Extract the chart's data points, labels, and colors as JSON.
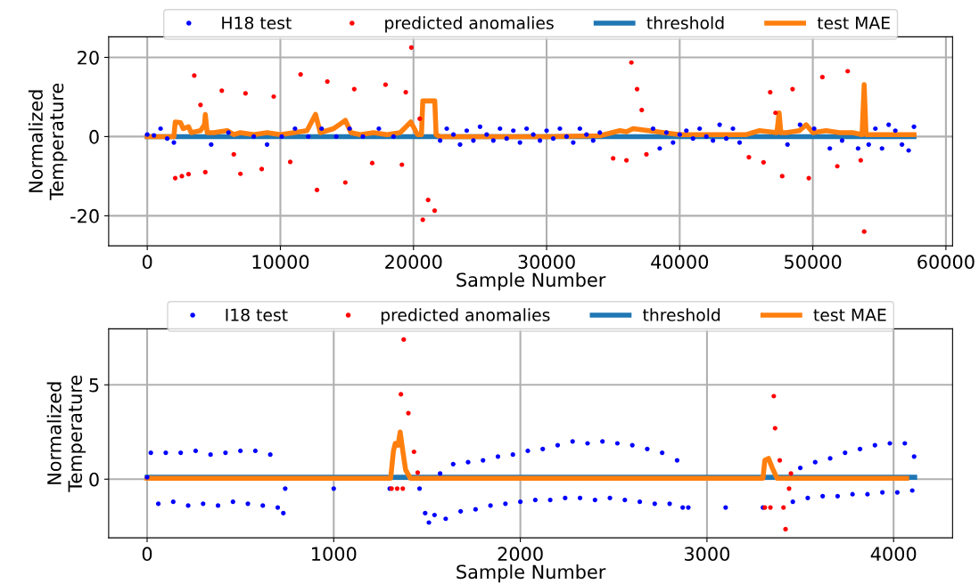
{
  "chart_data": [
    {
      "type": "scatter",
      "xlabel": "Sample Number",
      "ylabel": "Normalized\nTemperature",
      "xlim": [
        -2900,
        60500
      ],
      "ylim": [
        -27.6,
        25.2
      ],
      "xticks": [
        0,
        10000,
        20000,
        30000,
        40000,
        50000,
        60000
      ],
      "yticks": [
        -20,
        0,
        20
      ],
      "grid": true,
      "legend": "top",
      "series": [
        {
          "name": "H18 test",
          "marker": "circle",
          "color": "#0000ff",
          "x": [
            0,
            500,
            1000,
            1500,
            2000,
            4800,
            6100,
            8000,
            9000,
            10100,
            11100,
            12100,
            13100,
            14200,
            15200,
            16200,
            17400,
            18500,
            22000,
            22500,
            23000,
            23500,
            24000,
            24500,
            25000,
            25500,
            26000,
            26500,
            27000,
            27500,
            28000,
            28500,
            29000,
            29500,
            30000,
            30500,
            31000,
            31500,
            32000,
            32500,
            33000,
            33500,
            34000,
            38000,
            38500,
            39000,
            39500,
            40000,
            40500,
            41000,
            41500,
            42000,
            42500,
            43000,
            43500,
            44000,
            44500,
            48100,
            49040,
            50100,
            51280,
            52200,
            53400,
            54200,
            54700,
            55200,
            55700,
            56200,
            56700,
            57200,
            57600
          ],
          "values": [
            0.5,
            0.3,
            2,
            -0.5,
            -1.5,
            -2,
            1,
            0,
            -2,
            0,
            2,
            0,
            2,
            0,
            2,
            0,
            2,
            0,
            -1,
            2,
            0.5,
            -2,
            1.5,
            -1,
            2.5,
            0.5,
            -1,
            2,
            -0.5,
            1.5,
            -1.5,
            2,
            0.5,
            -1,
            1.5,
            -0.5,
            2,
            0,
            -1.5,
            2,
            0.5,
            -1,
            1,
            2,
            -3,
            1,
            -1.5,
            0.5,
            1.5,
            -0.5,
            2,
            0,
            -1,
            3,
            -0.5,
            2,
            -1.5,
            -2,
            3,
            2,
            -3,
            -1,
            -3,
            -2,
            2,
            -3,
            3,
            1.5,
            -2,
            -3.5,
            2.5
          ]
        },
        {
          "name": "predicted anomalies",
          "marker": "circle",
          "color": "#ff0000",
          "x": [
            2100,
            2600,
            3100,
            3530,
            4000,
            4360,
            5600,
            6500,
            7000,
            7380,
            8600,
            9500,
            10740,
            11520,
            12750,
            13530,
            14880,
            15550,
            16900,
            17900,
            19130,
            19420,
            19840,
            20470,
            20700,
            21100,
            21590,
            35000,
            36000,
            36370,
            36800,
            37150,
            37500,
            45200,
            46300,
            46800,
            47200,
            47700,
            48480,
            49700,
            50720,
            51840,
            52620,
            53600,
            53860
          ],
          "values": [
            -10.5,
            -10,
            -9.5,
            15.4,
            8,
            -9,
            11.6,
            -4.5,
            -9.4,
            10.9,
            -8.2,
            10.1,
            -6.4,
            15.7,
            -13.5,
            13.9,
            -11.6,
            12,
            -6.7,
            13.1,
            -7.1,
            11.2,
            22.5,
            4.5,
            -21,
            -16,
            -18.7,
            -5.5,
            -6,
            18.7,
            12,
            6.7,
            -4.5,
            -5.2,
            -6.5,
            11.2,
            6,
            -10,
            12,
            -10.5,
            15,
            -7.5,
            16.5,
            -6,
            -24
          ]
        },
        {
          "name": "threshold",
          "type": "line",
          "color": "#1f77b4",
          "x": [
            0,
            57600
          ],
          "values": [
            0,
            0
          ]
        },
        {
          "name": "test MAE",
          "type": "line",
          "color": "#ff7f0e",
          "x": [
            0,
            2000,
            2100,
            2500,
            2700,
            3100,
            3300,
            4000,
            4300,
            4360,
            4500,
            5000,
            6000,
            6500,
            7000,
            8000,
            9000,
            10000,
            11000,
            12000,
            12640,
            13000,
            14000,
            14880,
            15300,
            16000,
            17000,
            18000,
            19000,
            19800,
            20300,
            20600,
            20700,
            21600,
            21700,
            22000,
            30000,
            34000,
            35500,
            36000,
            36500,
            40000,
            45000,
            46000,
            47300,
            47470,
            47600,
            48000,
            49000,
            49500,
            50000,
            51000,
            52000,
            53000,
            53700,
            53860,
            54000,
            55000,
            57600
          ],
          "values": [
            0,
            0,
            3.7,
            3.5,
            2,
            2.5,
            1,
            1.5,
            3,
            5.6,
            1,
            1,
            1.5,
            0.5,
            1,
            0.5,
            1,
            0.5,
            1,
            1.5,
            5.6,
            1,
            2,
            4.1,
            1,
            0.5,
            1,
            0.5,
            1,
            3.7,
            0.5,
            0.5,
            9,
            9,
            0.5,
            0,
            0,
            0.2,
            1.5,
            1.2,
            2,
            0.5,
            0.5,
            1.5,
            1,
            6,
            1,
            1,
            1.5,
            3,
            1,
            1.5,
            1,
            1,
            0.5,
            13.1,
            0.5,
            0.5,
            0.5
          ]
        }
      ]
    },
    {
      "type": "scatter",
      "xlabel": "Sample Number",
      "ylabel": "Normalized\nTemperature",
      "xlim": [
        -206,
        4316
      ],
      "ylim": [
        -3.11,
        7.97
      ],
      "xticks": [
        0,
        1000,
        2000,
        3000,
        4000
      ],
      "yticks": [
        0,
        5
      ],
      "grid": true,
      "legend": "top",
      "series": [
        {
          "name": "I18 test",
          "marker": "circle",
          "color": "#0000ff",
          "x": [
            0,
            20,
            60,
            100,
            140,
            180,
            220,
            260,
            300,
            340,
            380,
            420,
            460,
            500,
            540,
            580,
            620,
            660,
            700,
            730,
            740,
            1000,
            1300,
            1460,
            1490,
            1510,
            1540,
            1570,
            1600,
            1640,
            1680,
            1720,
            1760,
            1800,
            1840,
            1880,
            1920,
            1960,
            2000,
            2040,
            2080,
            2120,
            2160,
            2200,
            2240,
            2280,
            2320,
            2360,
            2400,
            2440,
            2480,
            2520,
            2560,
            2600,
            2640,
            2680,
            2720,
            2760,
            2800,
            2840,
            2870,
            2900,
            3100,
            3300,
            3460,
            3500,
            3540,
            3580,
            3620,
            3660,
            3700,
            3740,
            3780,
            3820,
            3860,
            3900,
            3940,
            3980,
            4020,
            4060,
            4100,
            4110
          ],
          "values": [
            0.1,
            1.4,
            -1.3,
            1.4,
            -1.2,
            1.4,
            -1.4,
            1.5,
            -1.3,
            1.3,
            -1.4,
            1.4,
            -1.2,
            1.5,
            -1.3,
            1.5,
            -1.4,
            1.3,
            -1.5,
            -1.8,
            -0.5,
            -0.5,
            -0.5,
            -0.5,
            -1.8,
            -2.3,
            -1.9,
            0.3,
            -2.1,
            0.8,
            -1.7,
            0.9,
            -1.6,
            1.0,
            -1.4,
            1.2,
            -1.3,
            1.3,
            -1.2,
            1.5,
            -1.1,
            1.6,
            -1.1,
            1.8,
            -1.0,
            2.0,
            -1.0,
            1.9,
            -1.1,
            2.0,
            -1.0,
            1.9,
            -1.1,
            1.8,
            -1.2,
            1.6,
            -1.3,
            1.4,
            -1.3,
            1.0,
            -1.5,
            -1.5,
            -1.5,
            -1.5,
            -1.2,
            0.6,
            -1.0,
            0.9,
            -0.9,
            1.1,
            -0.9,
            1.4,
            -0.8,
            1.6,
            -0.8,
            1.8,
            -0.7,
            1.9,
            -0.7,
            1.9,
            -0.6,
            1.2
          ]
        },
        {
          "name": "predicted anomalies",
          "marker": "circle",
          "color": "#ff0000",
          "x": [
            1310,
            1340,
            1370,
            1360,
            1375,
            1400,
            1430,
            1450,
            3310,
            3340,
            3358,
            3365,
            3390,
            3410,
            3421,
            3440,
            3450
          ],
          "values": [
            -0.5,
            -0.5,
            -0.5,
            4.5,
            7.4,
            3.5,
            1.45,
            0.35,
            -1.5,
            -1.5,
            4.4,
            2.7,
            1.0,
            -1.5,
            -2.65,
            -0.5,
            0.3
          ]
        },
        {
          "name": "threshold",
          "type": "line",
          "color": "#1f77b4",
          "x": [
            0,
            4113
          ],
          "values": [
            0.1,
            0.1
          ]
        },
        {
          "name": "test MAE",
          "type": "line",
          "color": "#ff7f0e",
          "x": [
            0,
            1305,
            1320,
            1330,
            1345,
            1356,
            1370,
            1385,
            1410,
            3300,
            3310,
            3330,
            3350,
            3375,
            4070
          ],
          "values": [
            0.05,
            0.05,
            1.5,
            1.9,
            1.8,
            2.5,
            1.5,
            0.5,
            0.05,
            0.05,
            1.0,
            1.1,
            0.6,
            0.05,
            0.05
          ]
        }
      ]
    }
  ]
}
